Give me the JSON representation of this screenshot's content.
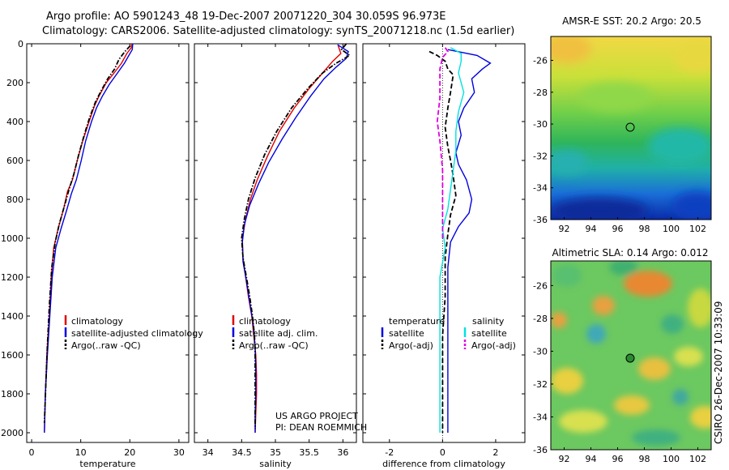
{
  "title_line1": "Argo profile: AO 5901243_48 19-Dec-2007 20071220_304 30.059S 96.973E",
  "title_line2": "Climatology: CARS2006. Satellite-adjusted climatology: synTS_20071218.nc (1.5d earlier)",
  "side_label": "CSIRO 26-Dec-2007 10:33:09",
  "credit_line1": "US ARGO PROJECT",
  "credit_line2": "PI: DEAN ROEMMICH",
  "colors": {
    "climatology": "#e00000",
    "satellite": "#0000e0",
    "argo": "#000000",
    "sat_salinity": "#00e0e0",
    "argo_salinity_adj": "#e000e0"
  },
  "chart_data": [
    {
      "id": "temperature",
      "type": "line",
      "xlabel": "temperature",
      "ylabel": "",
      "xlim": [
        -1,
        32
      ],
      "ylim": [
        0,
        2050
      ],
      "y_reversed": true,
      "xticks": [
        0,
        10,
        20,
        30
      ],
      "yticks": [
        0,
        200,
        400,
        600,
        800,
        1000,
        1200,
        1400,
        1600,
        1800,
        2000
      ],
      "legend": [
        "climatology",
        "satellite-adjusted climatology",
        "Argo(..raw -QC)"
      ],
      "series": [
        {
          "name": "climatology",
          "style": "solid",
          "color": "#e00000",
          "points": [
            [
              20.4,
              0
            ],
            [
              20.3,
              20
            ],
            [
              19.4,
              50
            ],
            [
              18.3,
              100
            ],
            [
              16.8,
              150
            ],
            [
              15.2,
              200
            ],
            [
              13.7,
              270
            ],
            [
              12.8,
              320
            ],
            [
              11.7,
              400
            ],
            [
              10.4,
              500
            ],
            [
              9.3,
              600
            ],
            [
              8.3,
              700
            ],
            [
              7.3,
              760
            ],
            [
              6.5,
              850
            ],
            [
              5.4,
              950
            ],
            [
              4.5,
              1050
            ],
            [
              4.0,
              1200
            ],
            [
              3.6,
              1400
            ],
            [
              3.1,
              1600
            ],
            [
              2.8,
              1800
            ],
            [
              2.6,
              2000
            ]
          ]
        },
        {
          "name": "satellite-adjusted climatology",
          "style": "solid",
          "color": "#0000e0",
          "points": [
            [
              20.6,
              0
            ],
            [
              20.5,
              30
            ],
            [
              19.8,
              60
            ],
            [
              18.9,
              100
            ],
            [
              17.5,
              150
            ],
            [
              15.8,
              210
            ],
            [
              14.4,
              270
            ],
            [
              13.2,
              330
            ],
            [
              12.2,
              400
            ],
            [
              11.0,
              500
            ],
            [
              10.1,
              600
            ],
            [
              9.1,
              700
            ],
            [
              8.1,
              770
            ],
            [
              7.2,
              850
            ],
            [
              6.0,
              950
            ],
            [
              4.9,
              1050
            ],
            [
              4.2,
              1200
            ],
            [
              3.7,
              1400
            ],
            [
              3.2,
              1600
            ],
            [
              2.8,
              1800
            ],
            [
              2.6,
              2000
            ]
          ]
        },
        {
          "name": "Argo(..raw -QC)",
          "style": "dashdot",
          "color": "#000000",
          "points": [
            [
              20.1,
              10
            ],
            [
              19.0,
              40
            ],
            [
              17.8,
              80
            ],
            [
              16.9,
              130
            ],
            [
              15.5,
              180
            ],
            [
              14.2,
              240
            ],
            [
              13.0,
              300
            ],
            [
              11.8,
              380
            ],
            [
              10.7,
              470
            ],
            [
              9.6,
              570
            ],
            [
              8.6,
              670
            ],
            [
              7.5,
              760
            ],
            [
              6.6,
              840
            ],
            [
              5.6,
              930
            ],
            [
              4.8,
              1020
            ],
            [
              4.1,
              1150
            ],
            [
              3.6,
              1350
            ],
            [
              3.2,
              1550
            ],
            [
              2.9,
              1750
            ],
            [
              2.6,
              1950
            ]
          ]
        }
      ]
    },
    {
      "id": "salinity",
      "type": "line",
      "xlabel": "salinity",
      "ylabel": "",
      "xlim": [
        33.8,
        36.2
      ],
      "ylim": [
        0,
        2050
      ],
      "y_reversed": true,
      "xticks": [
        34,
        34.5,
        35,
        35.5,
        36
      ],
      "yticks": [
        0,
        200,
        400,
        600,
        800,
        1000,
        1200,
        1400,
        1600,
        1800,
        2000
      ],
      "legend": [
        "climatology",
        "satellite adj. clim.",
        "Argo(..raw -QC)"
      ],
      "series": [
        {
          "name": "climatology",
          "style": "solid",
          "color": "#e00000",
          "points": [
            [
              35.93,
              10
            ],
            [
              35.97,
              50
            ],
            [
              35.85,
              90
            ],
            [
              35.7,
              150
            ],
            [
              35.5,
              230
            ],
            [
              35.28,
              330
            ],
            [
              35.06,
              450
            ],
            [
              34.88,
              580
            ],
            [
              34.73,
              700
            ],
            [
              34.63,
              800
            ],
            [
              34.56,
              900
            ],
            [
              34.51,
              1000
            ],
            [
              34.52,
              1100
            ],
            [
              34.56,
              1200
            ],
            [
              34.6,
              1300
            ],
            [
              34.65,
              1400
            ],
            [
              34.68,
              1500
            ],
            [
              34.71,
              1600
            ],
            [
              34.72,
              1700
            ],
            [
              34.72,
              1800
            ],
            [
              34.71,
              1900
            ],
            [
              34.7,
              2000
            ]
          ]
        },
        {
          "name": "satellite adj. clim.",
          "style": "solid",
          "color": "#0000e0",
          "points": [
            [
              35.92,
              5
            ],
            [
              36.08,
              40
            ],
            [
              36.05,
              75
            ],
            [
              35.9,
              120
            ],
            [
              35.72,
              180
            ],
            [
              35.52,
              270
            ],
            [
              35.3,
              380
            ],
            [
              35.1,
              490
            ],
            [
              34.9,
              610
            ],
            [
              34.75,
              720
            ],
            [
              34.62,
              830
            ],
            [
              34.54,
              930
            ],
            [
              34.51,
              1020
            ],
            [
              34.52,
              1120
            ],
            [
              34.57,
              1220
            ],
            [
              34.62,
              1330
            ],
            [
              34.67,
              1440
            ],
            [
              34.7,
              1560
            ],
            [
              34.71,
              1680
            ],
            [
              34.71,
              1800
            ],
            [
              34.7,
              1920
            ],
            [
              34.7,
              2000
            ]
          ]
        },
        {
          "name": "Argo(..raw -QC)",
          "style": "dashdot",
          "color": "#000000",
          "points": [
            [
              36.05,
              0
            ],
            [
              35.98,
              30
            ],
            [
              36.1,
              60
            ],
            [
              35.9,
              100
            ],
            [
              35.7,
              150
            ],
            [
              35.48,
              230
            ],
            [
              35.24,
              330
            ],
            [
              35.02,
              450
            ],
            [
              34.84,
              570
            ],
            [
              34.7,
              690
            ],
            [
              34.6,
              800
            ],
            [
              34.54,
              900
            ],
            [
              34.5,
              1000
            ],
            [
              34.52,
              1100
            ],
            [
              34.57,
              1200
            ],
            [
              34.62,
              1300
            ],
            [
              34.66,
              1400
            ],
            [
              34.69,
              1500
            ],
            [
              34.7,
              1600
            ],
            [
              34.7,
              1700
            ],
            [
              34.7,
              1800
            ],
            [
              34.7,
              1900
            ],
            [
              34.7,
              1980
            ]
          ]
        }
      ]
    },
    {
      "id": "difference",
      "type": "line",
      "xlabel": "difference from climatology",
      "ylabel": "",
      "xlim": [
        -3,
        3.1
      ],
      "ylim": [
        0,
        2050
      ],
      "y_reversed": true,
      "xticks": [
        -2,
        0,
        2
      ],
      "yticks": [
        0,
        200,
        400,
        600,
        800,
        1000,
        1200,
        1400,
        1600,
        1800,
        2000
      ],
      "legend_left_title": "temperature",
      "legend_right_title": "salinity",
      "legend_left": [
        "satellite",
        "Argo(-adj)"
      ],
      "legend_right": [
        "satellite",
        "Argo(-adj)"
      ],
      "series": [
        {
          "name": "temperature satellite",
          "style": "solid",
          "color": "#0000e0",
          "points": [
            [
              0.2,
              30
            ],
            [
              1.3,
              60
            ],
            [
              1.8,
              100
            ],
            [
              1.5,
              130
            ],
            [
              1.1,
              180
            ],
            [
              1.2,
              250
            ],
            [
              0.8,
              330
            ],
            [
              0.6,
              400
            ],
            [
              0.7,
              470
            ],
            [
              0.5,
              560
            ],
            [
              0.6,
              620
            ],
            [
              0.9,
              700
            ],
            [
              1.1,
              800
            ],
            [
              1.0,
              870
            ],
            [
              0.6,
              940
            ],
            [
              0.3,
              1020
            ],
            [
              0.2,
              1150
            ],
            [
              0.2,
              1300
            ],
            [
              0.2,
              1500
            ],
            [
              0.2,
              1700
            ],
            [
              0.2,
              1900
            ],
            [
              0.2,
              2000
            ]
          ]
        },
        {
          "name": "temperature Argo(-adj)",
          "style": "dashed",
          "color": "#000000",
          "points": [
            [
              -0.5,
              40
            ],
            [
              -0.2,
              60
            ],
            [
              0.1,
              90
            ],
            [
              0.2,
              130
            ],
            [
              0.4,
              160
            ],
            [
              0.3,
              250
            ],
            [
              0.2,
              330
            ],
            [
              0.1,
              430
            ],
            [
              0.2,
              530
            ],
            [
              0.3,
              600
            ],
            [
              0.4,
              680
            ],
            [
              0.5,
              780
            ],
            [
              0.3,
              880
            ],
            [
              0.2,
              980
            ],
            [
              0.1,
              1100
            ],
            [
              0.1,
              1300
            ],
            [
              0.0,
              1500
            ],
            [
              0.0,
              1700
            ],
            [
              0.0,
              1900
            ],
            [
              0.0,
              2000
            ]
          ]
        },
        {
          "name": "salinity satellite",
          "style": "solid",
          "color": "#00e0e0",
          "points": [
            [
              0.3,
              20
            ],
            [
              0.7,
              50
            ],
            [
              0.7,
              90
            ],
            [
              0.6,
              150
            ],
            [
              0.8,
              250
            ],
            [
              0.6,
              350
            ],
            [
              0.5,
              450
            ],
            [
              0.5,
              550
            ],
            [
              0.4,
              650
            ],
            [
              0.3,
              750
            ],
            [
              0.2,
              850
            ],
            [
              0.0,
              950
            ],
            [
              0.1,
              1050
            ],
            [
              -0.1,
              1200
            ],
            [
              -0.1,
              1400
            ],
            [
              -0.1,
              1600
            ],
            [
              -0.1,
              1800
            ],
            [
              -0.1,
              2000
            ]
          ]
        },
        {
          "name": "salinity Argo(-adj)",
          "style": "dashed",
          "color": "#e000e0",
          "points": [
            [
              0.1,
              20
            ],
            [
              0.2,
              40
            ],
            [
              0.0,
              70
            ],
            [
              -0.1,
              130
            ],
            [
              -0.1,
              200
            ],
            [
              -0.1,
              280
            ],
            [
              -0.2,
              400
            ],
            [
              -0.1,
              500
            ],
            [
              0.0,
              650
            ],
            [
              0.0,
              800
            ],
            [
              0.0,
              1000
            ]
          ]
        }
      ]
    },
    {
      "id": "sst_map",
      "type": "heatmap",
      "title": "AMSR-E SST: 20.2 Argo: 20.5",
      "xlim": [
        91,
        103
      ],
      "ylim": [
        -36,
        -24.5
      ],
      "xticks": [
        92,
        94,
        96,
        98,
        100,
        102
      ],
      "yticks": [
        -26,
        -28,
        -30,
        -32,
        -34,
        -36
      ],
      "marker": [
        97,
        -30.06
      ]
    },
    {
      "id": "sla_map",
      "type": "heatmap",
      "title": "Altimetric SLA: 0.14 Argo: 0.012",
      "xlim": [
        91,
        103
      ],
      "ylim": [
        -36,
        -24.5
      ],
      "xticks": [
        92,
        94,
        96,
        98,
        100,
        102
      ],
      "yticks": [
        -26,
        -28,
        -30,
        -32,
        -34,
        -36
      ],
      "marker": [
        97,
        -30.06
      ]
    }
  ]
}
